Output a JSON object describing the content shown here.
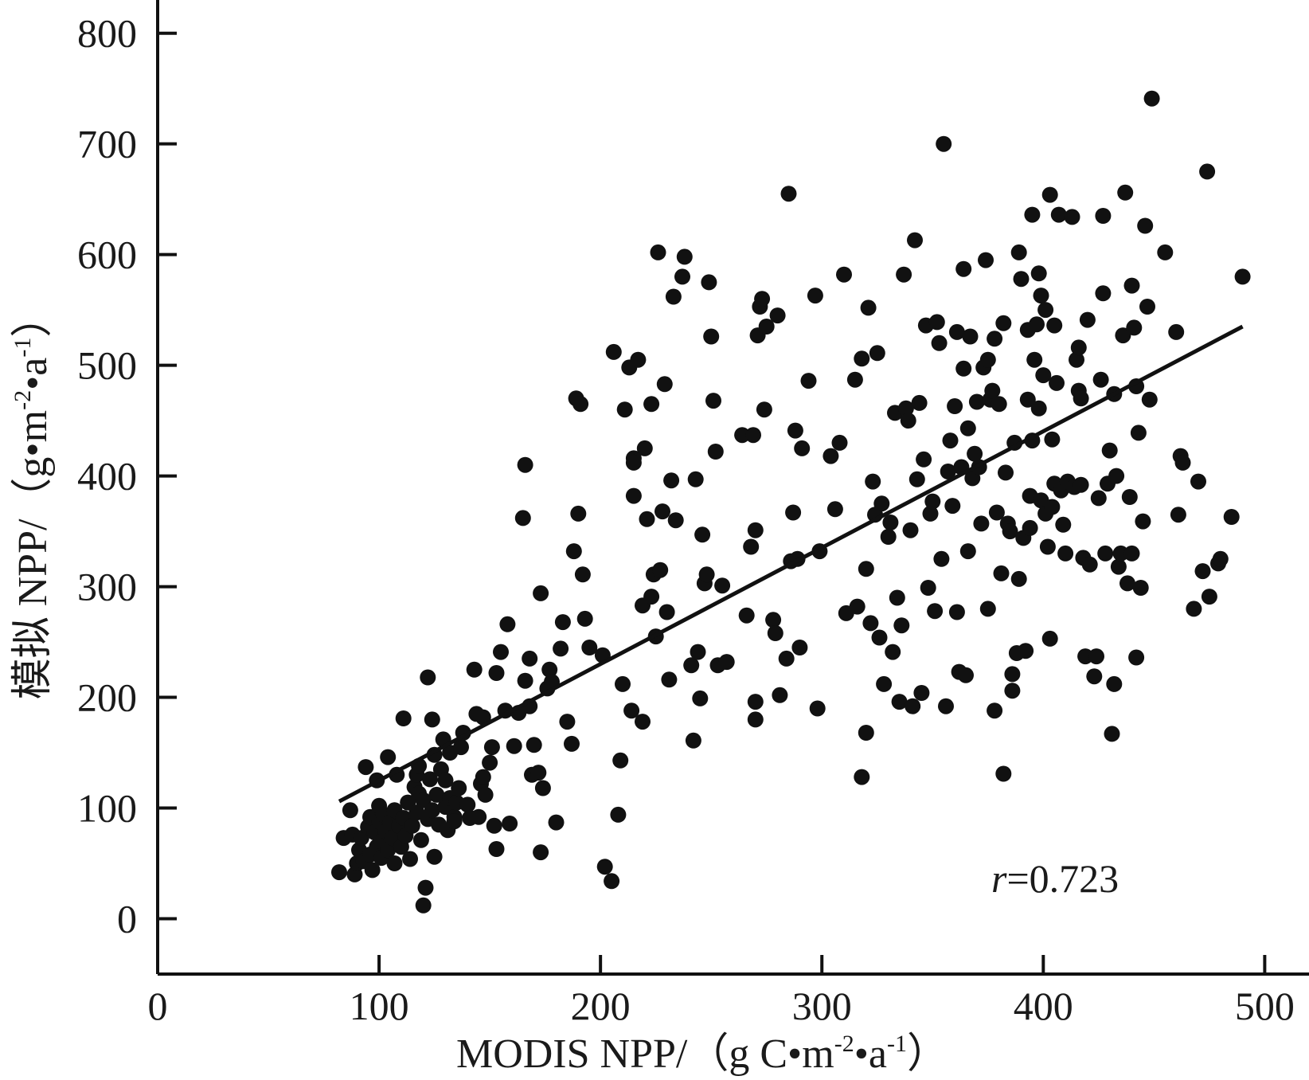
{
  "chart_data": {
    "type": "scatter",
    "title": "",
    "xlabel": {
      "main": "MODIS NPP/（g C•m",
      "exp1": "-2",
      "mid": "•a",
      "exp2": "-1",
      "end": "）"
    },
    "ylabel": {
      "main": "模拟 NPP/（g•m",
      "exp1": "-2",
      "mid": "•a",
      "exp2": "-1",
      "end": "）"
    },
    "xlim": [
      0,
      520
    ],
    "ylim": [
      -50,
      830
    ],
    "x_ticks": [
      0,
      100,
      200,
      300,
      400,
      500
    ],
    "x_tick_labels": [
      "0",
      "100",
      "200",
      "300",
      "400",
      "500"
    ],
    "y_ticks": [
      0,
      100,
      200,
      300,
      400,
      500,
      600,
      700,
      800
    ],
    "y_tick_labels": [
      "0",
      "100",
      "200",
      "300",
      "400",
      "500",
      "600",
      "700",
      "800"
    ],
    "grid": false,
    "legend": "none",
    "annotation": {
      "symbol": "r",
      "text": "=0.723"
    },
    "fit_line": {
      "x": [
        82,
        490
      ],
      "y": [
        106,
        535
      ]
    },
    "colors": {
      "point": "#111111",
      "line": "#111111",
      "axis": "#111111"
    },
    "points": [
      [
        82,
        42
      ],
      [
        84,
        73
      ],
      [
        87,
        98
      ],
      [
        88,
        76
      ],
      [
        89,
        40
      ],
      [
        90,
        50
      ],
      [
        91,
        62
      ],
      [
        92,
        73
      ],
      [
        93,
        52
      ],
      [
        94,
        137
      ],
      [
        95,
        83
      ],
      [
        96,
        92
      ],
      [
        96,
        58
      ],
      [
        97,
        44
      ],
      [
        98,
        78
      ],
      [
        99,
        125
      ],
      [
        99,
        65
      ],
      [
        100,
        88
      ],
      [
        100,
        102
      ],
      [
        101,
        70
      ],
      [
        101,
        55
      ],
      [
        102,
        94
      ],
      [
        103,
        79
      ],
      [
        104,
        62
      ],
      [
        104,
        146
      ],
      [
        105,
        87
      ],
      [
        106,
        73
      ],
      [
        107,
        98
      ],
      [
        107,
        50
      ],
      [
        108,
        130
      ],
      [
        109,
        84
      ],
      [
        110,
        65
      ],
      [
        111,
        91
      ],
      [
        111,
        181
      ],
      [
        112,
        75
      ],
      [
        113,
        105
      ],
      [
        114,
        54
      ],
      [
        115,
        84
      ],
      [
        116,
        119
      ],
      [
        117,
        96
      ],
      [
        117,
        130
      ],
      [
        118,
        138
      ],
      [
        118,
        113
      ],
      [
        119,
        71
      ],
      [
        120,
        12
      ],
      [
        120,
        107
      ],
      [
        121,
        28
      ],
      [
        122,
        218
      ],
      [
        122,
        90
      ],
      [
        123,
        126
      ],
      [
        124,
        98
      ],
      [
        124,
        180
      ],
      [
        125,
        56
      ],
      [
        125,
        148
      ],
      [
        126,
        112
      ],
      [
        127,
        85
      ],
      [
        128,
        135
      ],
      [
        129,
        162
      ],
      [
        130,
        101
      ],
      [
        130,
        125
      ],
      [
        131,
        80
      ],
      [
        132,
        150
      ],
      [
        132,
        109
      ],
      [
        134,
        92
      ],
      [
        134,
        88
      ],
      [
        135,
        105
      ],
      [
        136,
        118
      ],
      [
        137,
        155
      ],
      [
        138,
        168
      ],
      [
        140,
        103
      ],
      [
        141,
        91
      ],
      [
        143,
        225
      ],
      [
        144,
        185
      ],
      [
        145,
        92
      ],
      [
        146,
        122
      ],
      [
        147,
        182
      ],
      [
        147,
        128
      ],
      [
        148,
        112
      ],
      [
        150,
        141
      ],
      [
        151,
        155
      ],
      [
        152,
        84
      ],
      [
        153,
        63
      ],
      [
        153,
        222
      ],
      [
        155,
        241
      ],
      [
        157,
        188
      ],
      [
        158,
        266
      ],
      [
        159,
        86
      ],
      [
        161,
        156
      ],
      [
        163,
        186
      ],
      [
        165,
        362
      ],
      [
        166,
        410
      ],
      [
        166,
        215
      ],
      [
        168,
        235
      ],
      [
        168,
        192
      ],
      [
        169,
        130
      ],
      [
        170,
        157
      ],
      [
        172,
        132
      ],
      [
        173,
        294
      ],
      [
        173,
        60
      ],
      [
        174,
        118
      ],
      [
        176,
        208
      ],
      [
        177,
        225
      ],
      [
        178,
        214
      ],
      [
        180,
        87
      ],
      [
        182,
        244
      ],
      [
        183,
        268
      ],
      [
        185,
        178
      ],
      [
        187,
        158
      ],
      [
        188,
        332
      ],
      [
        189,
        470
      ],
      [
        190,
        366
      ],
      [
        191,
        465
      ],
      [
        192,
        311
      ],
      [
        193,
        271
      ],
      [
        195,
        245
      ],
      [
        201,
        238
      ],
      [
        202,
        47
      ],
      [
        205,
        34
      ],
      [
        206,
        512
      ],
      [
        208,
        94
      ],
      [
        209,
        143
      ],
      [
        210,
        212
      ],
      [
        211,
        460
      ],
      [
        213,
        498
      ],
      [
        214,
        188
      ],
      [
        215,
        416
      ],
      [
        215,
        412
      ],
      [
        215,
        382
      ],
      [
        217,
        505
      ],
      [
        219,
        283
      ],
      [
        219,
        178
      ],
      [
        220,
        425
      ],
      [
        221,
        361
      ],
      [
        223,
        465
      ],
      [
        223,
        291
      ],
      [
        224,
        311
      ],
      [
        225,
        255
      ],
      [
        226,
        602
      ],
      [
        227,
        315
      ],
      [
        228,
        368
      ],
      [
        229,
        483
      ],
      [
        230,
        277
      ],
      [
        231,
        216
      ],
      [
        232,
        396
      ],
      [
        233,
        562
      ],
      [
        234,
        360
      ],
      [
        237,
        580
      ],
      [
        238,
        598
      ],
      [
        241,
        229
      ],
      [
        242,
        161
      ],
      [
        243,
        397
      ],
      [
        244,
        241
      ],
      [
        245,
        199
      ],
      [
        246,
        347
      ],
      [
        247,
        303
      ],
      [
        248,
        311
      ],
      [
        249,
        575
      ],
      [
        250,
        526
      ],
      [
        251,
        468
      ],
      [
        252,
        422
      ],
      [
        253,
        229
      ],
      [
        255,
        301
      ],
      [
        257,
        232
      ],
      [
        264,
        437
      ],
      [
        266,
        274
      ],
      [
        268,
        336
      ],
      [
        269,
        437
      ],
      [
        270,
        351
      ],
      [
        270,
        180
      ],
      [
        270,
        196
      ],
      [
        271,
        527
      ],
      [
        272,
        553
      ],
      [
        273,
        560
      ],
      [
        274,
        460
      ],
      [
        275,
        535
      ],
      [
        278,
        270
      ],
      [
        279,
        258
      ],
      [
        280,
        545
      ],
      [
        281,
        202
      ],
      [
        284,
        235
      ],
      [
        285,
        655
      ],
      [
        286,
        323
      ],
      [
        287,
        367
      ],
      [
        288,
        441
      ],
      [
        289,
        325
      ],
      [
        290,
        245
      ],
      [
        291,
        425
      ],
      [
        294,
        486
      ],
      [
        297,
        563
      ],
      [
        298,
        190
      ],
      [
        299,
        332
      ],
      [
        304,
        418
      ],
      [
        306,
        370
      ],
      [
        308,
        430
      ],
      [
        310,
        582
      ],
      [
        311,
        276
      ],
      [
        315,
        487
      ],
      [
        316,
        282
      ],
      [
        318,
        506
      ],
      [
        318,
        128
      ],
      [
        320,
        316
      ],
      [
        320,
        168
      ],
      [
        321,
        552
      ],
      [
        322,
        267
      ],
      [
        323,
        395
      ],
      [
        324,
        365
      ],
      [
        325,
        511
      ],
      [
        326,
        254
      ],
      [
        327,
        375
      ],
      [
        328,
        212
      ],
      [
        330,
        345
      ],
      [
        331,
        358
      ],
      [
        332,
        241
      ],
      [
        333,
        457
      ],
      [
        334,
        290
      ],
      [
        335,
        196
      ],
      [
        336,
        265
      ],
      [
        337,
        582
      ],
      [
        338,
        461
      ],
      [
        339,
        450
      ],
      [
        340,
        351
      ],
      [
        341,
        192
      ],
      [
        342,
        613
      ],
      [
        343,
        397
      ],
      [
        344,
        466
      ],
      [
        345,
        204
      ],
      [
        346,
        415
      ],
      [
        347,
        536
      ],
      [
        348,
        299
      ],
      [
        349,
        366
      ],
      [
        350,
        377
      ],
      [
        351,
        278
      ],
      [
        352,
        539
      ],
      [
        353,
        520
      ],
      [
        354,
        325
      ],
      [
        355,
        700
      ],
      [
        356,
        192
      ],
      [
        357,
        404
      ],
      [
        358,
        432
      ],
      [
        359,
        373
      ],
      [
        360,
        463
      ],
      [
        361,
        277
      ],
      [
        361,
        530
      ],
      [
        362,
        223
      ],
      [
        363,
        408
      ],
      [
        364,
        497
      ],
      [
        364,
        587
      ],
      [
        365,
        220
      ],
      [
        366,
        332
      ],
      [
        366,
        443
      ],
      [
        367,
        526
      ],
      [
        368,
        398
      ],
      [
        369,
        420
      ],
      [
        370,
        467
      ],
      [
        371,
        408
      ],
      [
        372,
        357
      ],
      [
        373,
        498
      ],
      [
        374,
        595
      ],
      [
        375,
        280
      ],
      [
        375,
        505
      ],
      [
        376,
        469
      ],
      [
        377,
        477
      ],
      [
        378,
        524
      ],
      [
        378,
        188
      ],
      [
        379,
        367
      ],
      [
        380,
        465
      ],
      [
        381,
        312
      ],
      [
        382,
        538
      ],
      [
        382,
        131
      ],
      [
        383,
        403
      ],
      [
        384,
        357
      ],
      [
        385,
        350
      ],
      [
        386,
        206
      ],
      [
        386,
        221
      ],
      [
        387,
        430
      ],
      [
        388,
        240
      ],
      [
        389,
        602
      ],
      [
        389,
        307
      ],
      [
        390,
        578
      ],
      [
        391,
        344
      ],
      [
        392,
        242
      ],
      [
        393,
        532
      ],
      [
        393,
        469
      ],
      [
        394,
        353
      ],
      [
        394,
        382
      ],
      [
        395,
        432
      ],
      [
        395,
        636
      ],
      [
        396,
        505
      ],
      [
        397,
        537
      ],
      [
        398,
        583
      ],
      [
        398,
        461
      ],
      [
        399,
        378
      ],
      [
        399,
        563
      ],
      [
        400,
        491
      ],
      [
        401,
        550
      ],
      [
        401,
        366
      ],
      [
        402,
        336
      ],
      [
        403,
        253
      ],
      [
        403,
        654
      ],
      [
        404,
        372
      ],
      [
        404,
        433
      ],
      [
        405,
        536
      ],
      [
        405,
        393
      ],
      [
        406,
        484
      ],
      [
        407,
        636
      ],
      [
        408,
        387
      ],
      [
        409,
        356
      ],
      [
        410,
        330
      ],
      [
        411,
        395
      ],
      [
        413,
        634
      ],
      [
        414,
        390
      ],
      [
        415,
        505
      ],
      [
        416,
        516
      ],
      [
        416,
        477
      ],
      [
        417,
        470
      ],
      [
        417,
        392
      ],
      [
        418,
        326
      ],
      [
        419,
        237
      ],
      [
        420,
        541
      ],
      [
        421,
        320
      ],
      [
        423,
        219
      ],
      [
        424,
        237
      ],
      [
        425,
        380
      ],
      [
        426,
        487
      ],
      [
        427,
        565
      ],
      [
        427,
        635
      ],
      [
        428,
        330
      ],
      [
        429,
        393
      ],
      [
        430,
        423
      ],
      [
        431,
        167
      ],
      [
        432,
        474
      ],
      [
        432,
        212
      ],
      [
        433,
        400
      ],
      [
        434,
        318
      ],
      [
        435,
        330
      ],
      [
        436,
        527
      ],
      [
        437,
        656
      ],
      [
        438,
        303
      ],
      [
        439,
        381
      ],
      [
        440,
        572
      ],
      [
        440,
        330
      ],
      [
        441,
        534
      ],
      [
        442,
        481
      ],
      [
        442,
        236
      ],
      [
        443,
        439
      ],
      [
        444,
        299
      ],
      [
        445,
        359
      ],
      [
        446,
        626
      ],
      [
        447,
        553
      ],
      [
        448,
        469
      ],
      [
        449,
        741
      ],
      [
        455,
        602
      ],
      [
        460,
        530
      ],
      [
        461,
        365
      ],
      [
        462,
        418
      ],
      [
        463,
        412
      ],
      [
        468,
        280
      ],
      [
        470,
        395
      ],
      [
        472,
        314
      ],
      [
        474,
        675
      ],
      [
        475,
        291
      ],
      [
        479,
        321
      ],
      [
        480,
        325
      ],
      [
        485,
        363
      ],
      [
        490,
        580
      ]
    ]
  }
}
